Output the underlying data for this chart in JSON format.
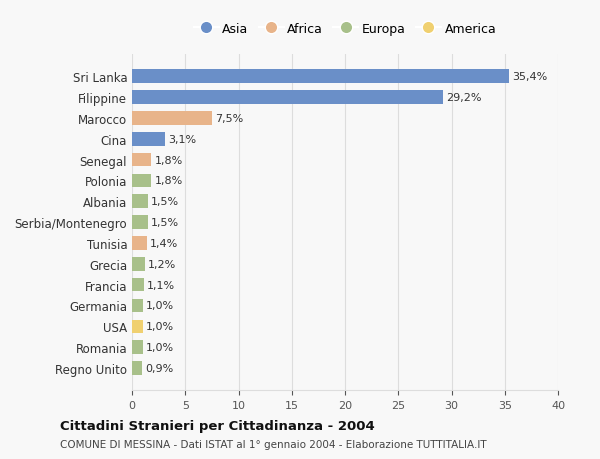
{
  "countries": [
    "Sri Lanka",
    "Filippine",
    "Marocco",
    "Cina",
    "Senegal",
    "Polonia",
    "Albania",
    "Serbia/Montenegro",
    "Tunisia",
    "Grecia",
    "Francia",
    "Germania",
    "USA",
    "Romania",
    "Regno Unito"
  ],
  "values": [
    35.4,
    29.2,
    7.5,
    3.1,
    1.8,
    1.8,
    1.5,
    1.5,
    1.4,
    1.2,
    1.1,
    1.0,
    1.0,
    1.0,
    0.9
  ],
  "labels": [
    "35,4%",
    "29,2%",
    "7,5%",
    "3,1%",
    "1,8%",
    "1,8%",
    "1,5%",
    "1,5%",
    "1,4%",
    "1,2%",
    "1,1%",
    "1,0%",
    "1,0%",
    "1,0%",
    "0,9%"
  ],
  "continents": [
    "Asia",
    "Asia",
    "Africa",
    "Asia",
    "Africa",
    "Europa",
    "Europa",
    "Europa",
    "Africa",
    "Europa",
    "Europa",
    "Europa",
    "America",
    "Europa",
    "Europa"
  ],
  "colors": {
    "Asia": "#6a8fc8",
    "Africa": "#e8b48a",
    "Europa": "#a8c08a",
    "America": "#f0d070"
  },
  "legend_order": [
    "Asia",
    "Africa",
    "Europa",
    "America"
  ],
  "title": "Cittadini Stranieri per Cittadinanza - 2004",
  "subtitle": "COMUNE DI MESSINA - Dati ISTAT al 1° gennaio 2004 - Elaborazione TUTTITALIA.IT",
  "xlim": [
    0,
    40
  ],
  "xticks": [
    0,
    5,
    10,
    15,
    20,
    25,
    30,
    35,
    40
  ],
  "background_color": "#f8f8f8",
  "grid_color": "#dddddd"
}
